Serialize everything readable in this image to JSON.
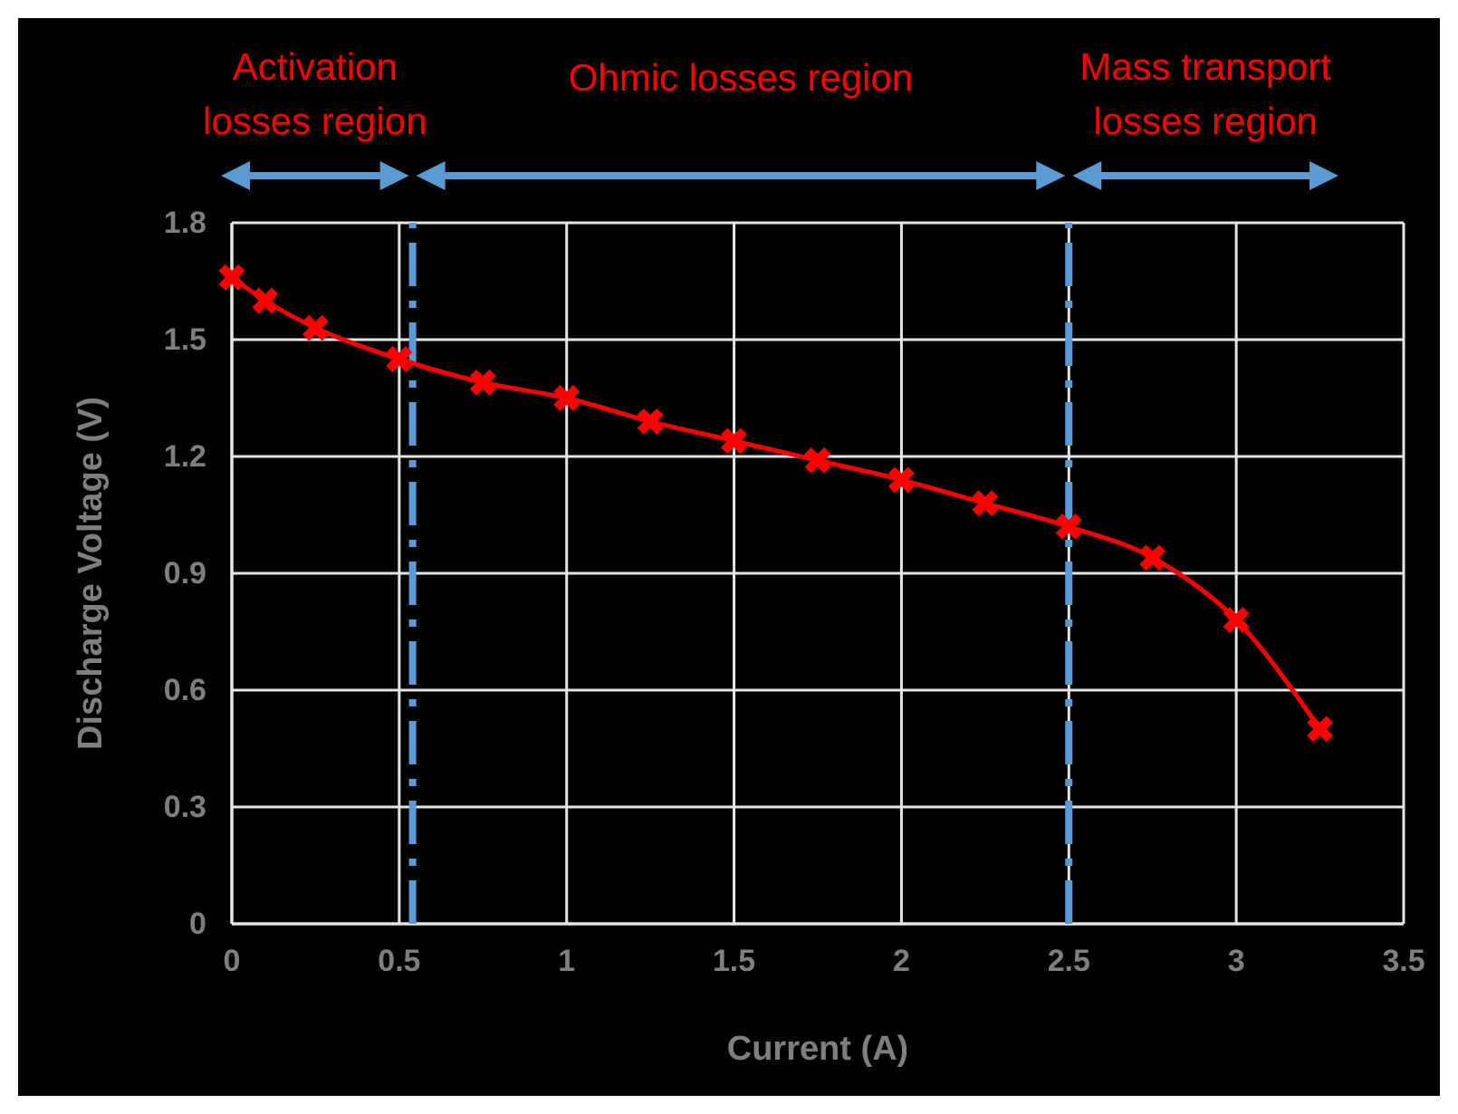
{
  "chart_data": {
    "type": "line",
    "xlabel": "Current (A)",
    "ylabel": "Discharge Voltage (V)",
    "x": [
      0,
      0.1,
      0.25,
      0.5,
      0.75,
      1,
      1.25,
      1.5,
      1.75,
      2,
      2.25,
      2.5,
      2.75,
      3,
      3.25
    ],
    "series": [
      {
        "color": "#ff0000",
        "values": [
          1.66,
          1.6,
          1.53,
          1.45,
          1.39,
          1.35,
          1.29,
          1.24,
          1.19,
          1.14,
          1.08,
          1.02,
          0.94,
          0.78,
          0.5
        ]
      }
    ],
    "xlim": [
      0,
      3.5
    ],
    "xticks": [
      0,
      0.5,
      1,
      1.5,
      2,
      2.5,
      3,
      3.5
    ],
    "ylim": [
      0,
      1.8
    ],
    "yticks": [
      {
        "value": 0,
        "label": "0"
      },
      {
        "value": 0.3,
        "label": "0.3"
      },
      {
        "value": 0.6,
        "label": "0.6"
      },
      {
        "value": 0.9,
        "label": "0.9"
      },
      {
        "value": 1.2,
        "label": "1.2"
      },
      {
        "value": 1.5,
        "label": "1.5"
      },
      {
        "value": 1.8,
        "label": "1.8"
      }
    ],
    "grid": true,
    "marker": "cross",
    "line_style": "solid",
    "ref_lines": [
      {
        "axis": "x",
        "value": 0.54,
        "color": "#5b9bd5",
        "line_style": "dashdot"
      },
      {
        "axis": "x",
        "value": 2.5,
        "color": "#5b9bd5",
        "line_style": "dashdot"
      }
    ],
    "annotations": [
      "Activation losses region",
      "Ohmic  losses region",
      "Mass transport losses region"
    ]
  }
}
